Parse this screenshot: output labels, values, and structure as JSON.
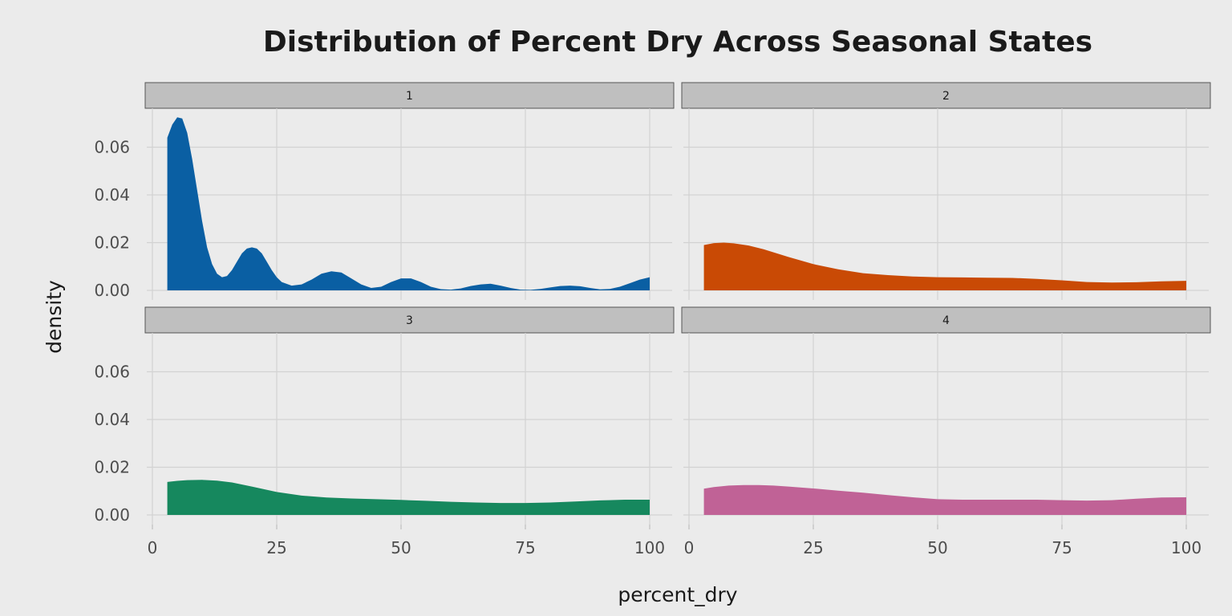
{
  "chart_data": {
    "type": "area",
    "title": "Distribution of Percent Dry Across Seasonal States",
    "xlabel": "percent_dry",
    "ylabel": "density",
    "xlim": [
      0,
      100
    ],
    "ylim": [
      0,
      0.075
    ],
    "x_ticks": [
      0,
      25,
      50,
      75,
      100
    ],
    "x_tick_labels": [
      "0",
      "25",
      "50",
      "75",
      "100"
    ],
    "y_ticks": [
      0.0,
      0.02,
      0.04,
      0.06
    ],
    "y_tick_labels": [
      "0.00",
      "0.02",
      "0.04",
      "0.06"
    ],
    "grid": true,
    "legend": "none",
    "panels": [
      {
        "strip": "1",
        "color": "#0a5fa3",
        "x": [
          3,
          4,
          5,
          6,
          7,
          8,
          9,
          10,
          11,
          12,
          13,
          14,
          15,
          16,
          17,
          18,
          19,
          20,
          21,
          22,
          23,
          24,
          25,
          26,
          28,
          30,
          32,
          34,
          36,
          38,
          40,
          42,
          44,
          46,
          48,
          50,
          52,
          54,
          56,
          58,
          60,
          62,
          64,
          66,
          68,
          70,
          72,
          74,
          76,
          78,
          80,
          82,
          84,
          86,
          88,
          90,
          92,
          94,
          96,
          98,
          100
        ],
        "y": [
          0.064,
          0.0695,
          0.0725,
          0.072,
          0.066,
          0.055,
          0.042,
          0.029,
          0.018,
          0.011,
          0.007,
          0.0055,
          0.006,
          0.0085,
          0.012,
          0.0155,
          0.0175,
          0.018,
          0.0175,
          0.0155,
          0.012,
          0.0085,
          0.0055,
          0.0035,
          0.002,
          0.0025,
          0.0045,
          0.007,
          0.008,
          0.0075,
          0.005,
          0.0025,
          0.001,
          0.0015,
          0.0035,
          0.005,
          0.005,
          0.0035,
          0.0015,
          0.0005,
          0.0003,
          0.0008,
          0.0018,
          0.0025,
          0.0028,
          0.002,
          0.001,
          0.0003,
          0.0002,
          0.0006,
          0.0012,
          0.0018,
          0.002,
          0.0017,
          0.001,
          0.0004,
          0.0006,
          0.0015,
          0.003,
          0.0045,
          0.0055
        ]
      },
      {
        "strip": "2",
        "color": "#c94a05",
        "x": [
          3,
          5,
          7,
          9,
          12,
          15,
          20,
          25,
          30,
          35,
          40,
          45,
          50,
          55,
          60,
          65,
          70,
          75,
          80,
          85,
          90,
          95,
          100
        ],
        "y": [
          0.019,
          0.0198,
          0.02,
          0.0197,
          0.0188,
          0.0172,
          0.014,
          0.011,
          0.0088,
          0.0072,
          0.0064,
          0.0058,
          0.0055,
          0.0054,
          0.0053,
          0.0052,
          0.0048,
          0.0042,
          0.0035,
          0.0033,
          0.0034,
          0.0038,
          0.004
        ]
      },
      {
        "strip": "3",
        "color": "#16885e",
        "x": [
          3,
          5,
          7,
          10,
          13,
          16,
          20,
          25,
          30,
          35,
          40,
          45,
          50,
          55,
          60,
          65,
          70,
          75,
          80,
          85,
          90,
          95,
          100
        ],
        "y": [
          0.0138,
          0.0143,
          0.0146,
          0.0147,
          0.0144,
          0.0136,
          0.0119,
          0.0096,
          0.0081,
          0.0073,
          0.0069,
          0.0066,
          0.0063,
          0.0059,
          0.0055,
          0.0052,
          0.005,
          0.005,
          0.0052,
          0.0056,
          0.0061,
          0.0064,
          0.0064
        ]
      },
      {
        "strip": "4",
        "color": "#c06296",
        "x": [
          3,
          5,
          8,
          11,
          14,
          17,
          20,
          25,
          30,
          35,
          40,
          45,
          50,
          55,
          60,
          65,
          70,
          75,
          80,
          85,
          90,
          95,
          100
        ],
        "y": [
          0.011,
          0.0117,
          0.0123,
          0.0125,
          0.0125,
          0.0123,
          0.0119,
          0.0111,
          0.0102,
          0.0093,
          0.0083,
          0.0074,
          0.0066,
          0.0064,
          0.0064,
          0.0064,
          0.0064,
          0.0062,
          0.006,
          0.0062,
          0.0068,
          0.0073,
          0.0074
        ]
      }
    ]
  }
}
